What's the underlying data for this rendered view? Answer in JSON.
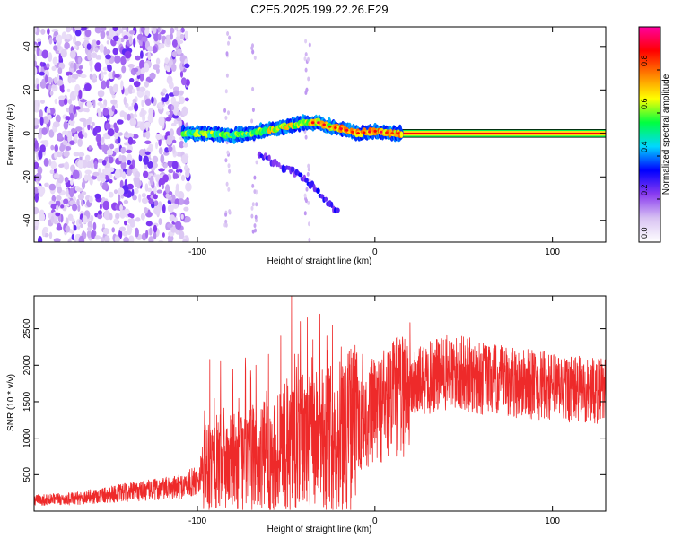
{
  "figure": {
    "title": "C2E5.2025.199.22.26.E29"
  },
  "chart_data": [
    {
      "type": "heatmap",
      "title": "C2E5.2025.199.22.26.E29",
      "xlabel": "Height of straight line (km)",
      "ylabel": "Frequency (Hz)",
      "xlim": [
        -192,
        130
      ],
      "ylim": [
        -50,
        49
      ],
      "x_ticks": [
        -100,
        0,
        100
      ],
      "x_tick_labels": [
        "-100",
        "0",
        "100"
      ],
      "y_ticks": [
        -40,
        -20,
        0,
        20,
        40
      ],
      "y_tick_labels": [
        "-40",
        "-20",
        "0",
        "20",
        "40"
      ],
      "grid": false,
      "colorbar": {
        "label": "Normalized spectral amplitude",
        "range": [
          0,
          1
        ],
        "ticks": [
          0.0,
          0.2,
          0.4,
          0.6,
          0.8
        ],
        "tick_labels": [
          "0.0",
          "0.2",
          "0.4",
          "0.6",
          "0.8"
        ],
        "colormap": [
          "#ffffff",
          "#d8c2f2",
          "#8a3cf0",
          "#0000ff",
          "#00d8ff",
          "#00ff40",
          "#ffff00",
          "#ff8000",
          "#ff0000",
          "#ff00a0"
        ]
      },
      "features": {
        "noise_region_x": [
          -192,
          -105
        ],
        "main_ridge": [
          [
            -108,
            0
          ],
          [
            -95,
            0
          ],
          [
            -80,
            -1
          ],
          [
            -65,
            1
          ],
          [
            -50,
            3
          ],
          [
            -40,
            5
          ],
          [
            -32,
            5
          ],
          [
            -25,
            3
          ],
          [
            -18,
            2
          ],
          [
            -10,
            0
          ],
          [
            0,
            1
          ],
          [
            10,
            0
          ],
          [
            130,
            0
          ]
        ],
        "secondary_branch": [
          [
            -65,
            -10
          ],
          [
            -55,
            -14
          ],
          [
            -45,
            -18
          ],
          [
            -38,
            -22
          ],
          [
            -25,
            -33
          ],
          [
            -20,
            -37
          ]
        ],
        "constant_band_x": [
          15,
          130
        ],
        "constant_band_frequency": 0,
        "constant_band_halfwidth": 1.8
      }
    },
    {
      "type": "line",
      "xlabel": "Height of straight line (km)",
      "ylabel": "SNR (10 * v/v)",
      "xlim": [
        -192,
        130
      ],
      "ylim": [
        0,
        2950
      ],
      "x_ticks": [
        -100,
        0,
        100
      ],
      "x_tick_labels": [
        "-100",
        "0",
        "100"
      ],
      "y_ticks": [
        500,
        1000,
        1500,
        2000,
        2500
      ],
      "y_tick_labels": [
        "500",
        "1000",
        "1500",
        "2000",
        "2500"
      ],
      "grid": false,
      "color": "#ee2a2a",
      "series_envelope": [
        {
          "x": -192,
          "y": 150
        },
        {
          "x": -170,
          "y": 170
        },
        {
          "x": -150,
          "y": 230
        },
        {
          "x": -130,
          "y": 280
        },
        {
          "x": -110,
          "y": 330
        },
        {
          "x": -100,
          "y": 420
        },
        {
          "x": -96,
          "y": 700
        },
        {
          "x": -85,
          "y": 650
        },
        {
          "x": -70,
          "y": 720
        },
        {
          "x": -55,
          "y": 800
        },
        {
          "x": -45,
          "y": 1000
        },
        {
          "x": -35,
          "y": 950
        },
        {
          "x": -20,
          "y": 1050
        },
        {
          "x": -10,
          "y": 1200
        },
        {
          "x": 0,
          "y": 1380
        },
        {
          "x": 10,
          "y": 1520
        },
        {
          "x": 20,
          "y": 1700
        },
        {
          "x": 30,
          "y": 1820
        },
        {
          "x": 40,
          "y": 1880
        },
        {
          "x": 50,
          "y": 1880
        },
        {
          "x": 60,
          "y": 1820
        },
        {
          "x": 70,
          "y": 1780
        },
        {
          "x": 80,
          "y": 1760
        },
        {
          "x": 90,
          "y": 1730
        },
        {
          "x": 100,
          "y": 1700
        },
        {
          "x": 110,
          "y": 1680
        },
        {
          "x": 120,
          "y": 1650
        },
        {
          "x": 130,
          "y": 1640
        }
      ],
      "spikes": [
        {
          "x": -93,
          "y": 2080
        },
        {
          "x": -87,
          "y": 2050
        },
        {
          "x": -80,
          "y": 1950
        },
        {
          "x": -73,
          "y": 2100
        },
        {
          "x": -67,
          "y": 2000
        },
        {
          "x": -60,
          "y": 2150
        },
        {
          "x": -53,
          "y": 2400
        },
        {
          "x": -47,
          "y": 2950
        },
        {
          "x": -42,
          "y": 2600
        },
        {
          "x": -38,
          "y": 2650
        },
        {
          "x": -35,
          "y": 2350
        },
        {
          "x": -31,
          "y": 2700
        },
        {
          "x": -27,
          "y": 2400
        },
        {
          "x": -24,
          "y": 2550
        },
        {
          "x": -19,
          "y": 2250
        },
        {
          "x": -13,
          "y": 2100
        },
        {
          "x": -7,
          "y": 2150
        },
        {
          "x": -2,
          "y": 2050
        },
        {
          "x": 5,
          "y": 2200
        },
        {
          "x": 14,
          "y": 2180
        },
        {
          "x": 35,
          "y": 2350
        },
        {
          "x": 42,
          "y": 2330
        },
        {
          "x": 64,
          "y": 2250
        },
        {
          "x": 90,
          "y": 2150
        },
        {
          "x": 115,
          "y": 2050
        },
        {
          "x": 128,
          "y": 2000
        }
      ]
    }
  ]
}
